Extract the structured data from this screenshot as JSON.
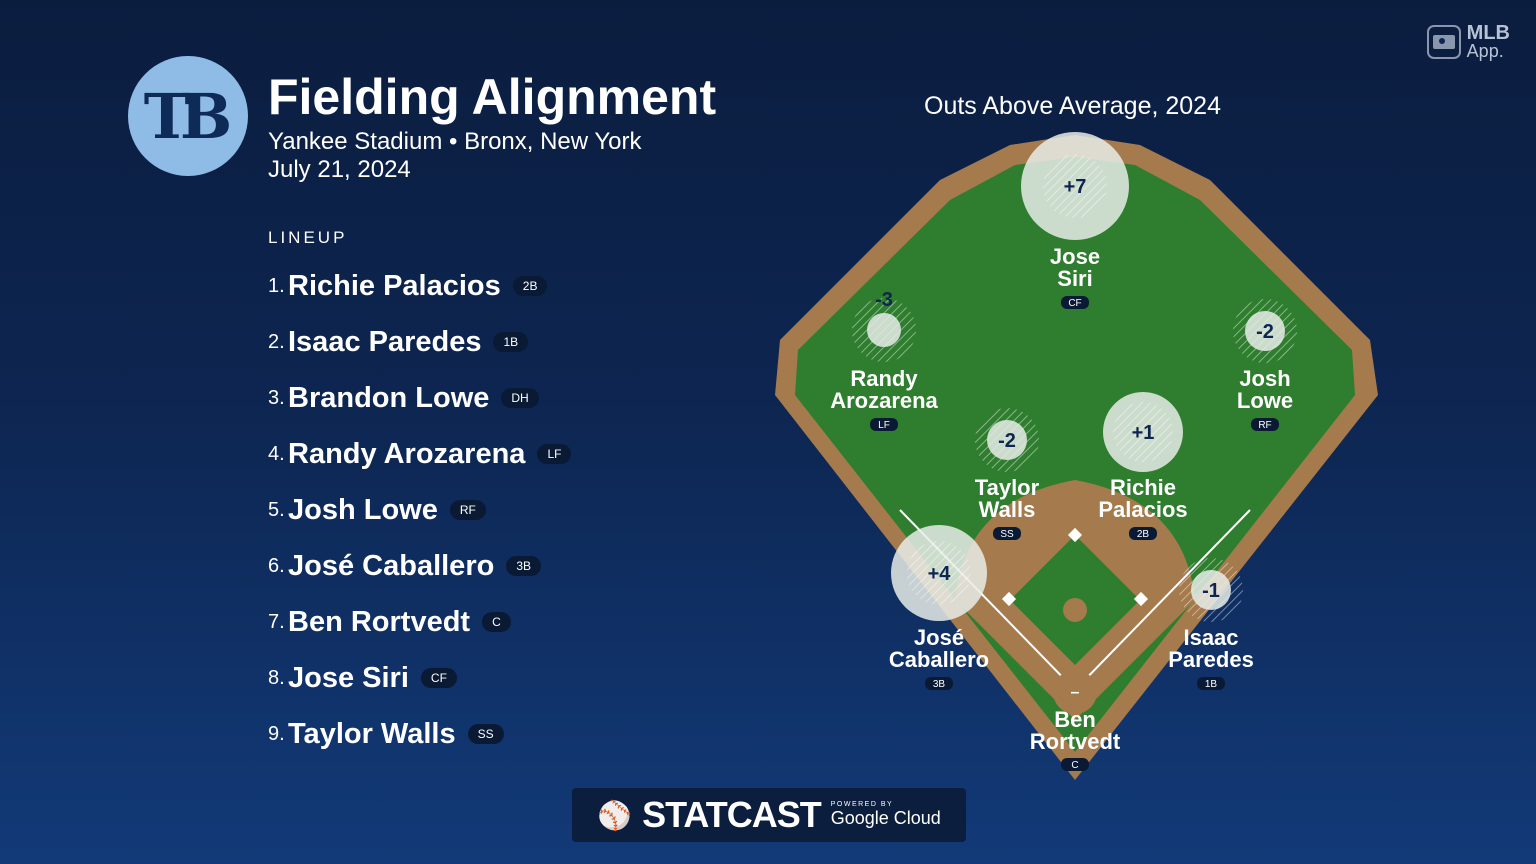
{
  "header": {
    "team_logo_text": "TB",
    "title": "Fielding Alignment",
    "venue": "Yankee Stadium • Bronx, New York",
    "date": "July 21, 2024"
  },
  "brand": {
    "line1": "MLB",
    "line2": "App."
  },
  "lineup": {
    "label": "LINEUP",
    "players": [
      {
        "num": "1.",
        "name": "Richie Palacios",
        "pos": "2B"
      },
      {
        "num": "2.",
        "name": "Isaac Paredes",
        "pos": "1B"
      },
      {
        "num": "3.",
        "name": "Brandon Lowe",
        "pos": "DH"
      },
      {
        "num": "4.",
        "name": "Randy Arozarena",
        "pos": "LF"
      },
      {
        "num": "5.",
        "name": "Josh Lowe",
        "pos": "RF"
      },
      {
        "num": "6.",
        "name": "José Caballero",
        "pos": "3B"
      },
      {
        "num": "7.",
        "name": "Ben Rortvedt",
        "pos": "C"
      },
      {
        "num": "8.",
        "name": "Jose Siri",
        "pos": "CF"
      },
      {
        "num": "9.",
        "name": "Taylor Walls",
        "pos": "SS"
      }
    ]
  },
  "field": {
    "title": "Outs Above Average, 2024",
    "colors": {
      "grass": "#2f7d2e",
      "dirt": "#a57a4d"
    },
    "players": {
      "cf": {
        "oaa": "+7",
        "first": "Jose",
        "last": "Siri",
        "pos": "CF"
      },
      "lf": {
        "oaa": "-3",
        "first": "Randy",
        "last": "Arozarena",
        "pos": "LF"
      },
      "rf": {
        "oaa": "-2",
        "first": "Josh",
        "last": "Lowe",
        "pos": "RF"
      },
      "ss": {
        "oaa": "-2",
        "first": "Taylor",
        "last": "Walls",
        "pos": "SS"
      },
      "second": {
        "oaa": "+1",
        "first": "Richie",
        "last": "Palacios",
        "pos": "2B"
      },
      "third": {
        "oaa": "+4",
        "first": "José",
        "last": "Caballero",
        "pos": "3B"
      },
      "first": {
        "oaa": "-1",
        "first": "Isaac",
        "last": "Paredes",
        "pos": "1B"
      },
      "c": {
        "oaa": "–",
        "first": "Ben",
        "last": "Rortvedt",
        "pos": "C"
      }
    }
  },
  "footer": {
    "statcast": "STATCAST",
    "powered_by": "POWERED BY",
    "google_cloud": "Google Cloud"
  }
}
